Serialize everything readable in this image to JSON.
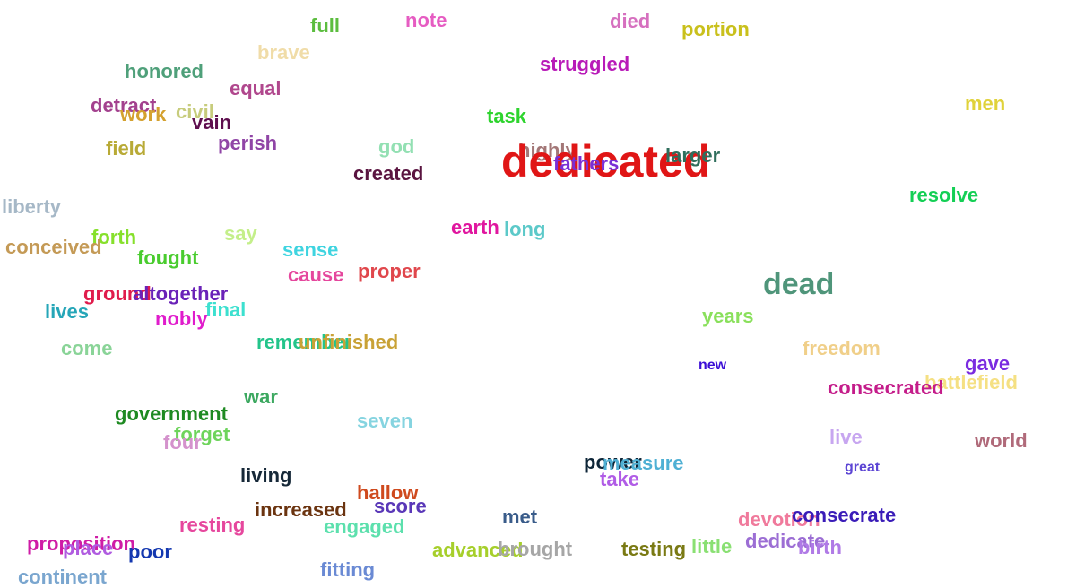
{
  "words": [
    {
      "id": "full",
      "text": "full",
      "color": "#5cbd3f"
    },
    {
      "id": "note",
      "text": "note",
      "color": "#e65cc2"
    },
    {
      "id": "died",
      "text": "died",
      "color": "#d670bf"
    },
    {
      "id": "portion",
      "text": "portion",
      "color": "#c9c01c"
    },
    {
      "id": "brave",
      "text": "brave",
      "color": "#f0dca8"
    },
    {
      "id": "struggled",
      "text": "struggled",
      "color": "#b81ab8"
    },
    {
      "id": "honored",
      "text": "honored",
      "color": "#4fa07a"
    },
    {
      "id": "equal",
      "text": "equal",
      "color": "#b0478d"
    },
    {
      "id": "men",
      "text": "men",
      "color": "#e0d23a"
    },
    {
      "id": "detract",
      "text": "detract",
      "color": "#a3418e"
    },
    {
      "id": "work",
      "text": "work",
      "color": "#d4a12f"
    },
    {
      "id": "civil",
      "text": "civil",
      "color": "#c7cc7c"
    },
    {
      "id": "vain",
      "text": "vain",
      "color": "#5e0e4e"
    },
    {
      "id": "task",
      "text": "task",
      "color": "#2ed42e"
    },
    {
      "id": "field",
      "text": "field",
      "color": "#b8aa36"
    },
    {
      "id": "perish",
      "text": "perish",
      "color": "#9045a6"
    },
    {
      "id": "god",
      "text": "god",
      "color": "#93e0b3"
    },
    {
      "id": "highly",
      "text": "highly",
      "color": "#a37777"
    },
    {
      "id": "dedicated",
      "text": "dedicated",
      "color": "#e01616"
    },
    {
      "id": "fathers",
      "text": "fathers",
      "color": "#7a2fd6"
    },
    {
      "id": "larger",
      "text": "larger",
      "color": "#2f6e5c"
    },
    {
      "id": "created",
      "text": "created",
      "color": "#5a1440"
    },
    {
      "id": "resolve",
      "text": "resolve",
      "color": "#14cf55"
    },
    {
      "id": "liberty",
      "text": "liberty",
      "color": "#a6b8c7"
    },
    {
      "id": "earth",
      "text": "earth",
      "color": "#e0169f"
    },
    {
      "id": "long",
      "text": "long",
      "color": "#5cc9c9"
    },
    {
      "id": "say",
      "text": "say",
      "color": "#c4ef8a"
    },
    {
      "id": "forth",
      "text": "forth",
      "color": "#86e02b"
    },
    {
      "id": "conceived",
      "text": "conceived",
      "color": "#c49a56"
    },
    {
      "id": "sense",
      "text": "sense",
      "color": "#3fd4e0"
    },
    {
      "id": "fought",
      "text": "fought",
      "color": "#49cc2e"
    },
    {
      "id": "cause",
      "text": "cause",
      "color": "#e5479d"
    },
    {
      "id": "proper",
      "text": "proper",
      "color": "#e0474c"
    },
    {
      "id": "dead",
      "text": "dead",
      "color": "#4f957a"
    },
    {
      "id": "ground",
      "text": "ground",
      "color": "#e01c4c"
    },
    {
      "id": "altogether",
      "text": "altogether",
      "color": "#6a22b8"
    },
    {
      "id": "lives",
      "text": "lives",
      "color": "#26a6b8"
    },
    {
      "id": "final",
      "text": "final",
      "color": "#3ce0cf"
    },
    {
      "id": "nobly",
      "text": "nobly",
      "color": "#e01ccc"
    },
    {
      "id": "years",
      "text": "years",
      "color": "#8ae05c"
    },
    {
      "id": "come",
      "text": "come",
      "color": "#8ad498"
    },
    {
      "id": "remember",
      "text": "remember",
      "color": "#23c48a"
    },
    {
      "id": "unfinished",
      "text": "unfinished",
      "color": "#c9a236"
    },
    {
      "id": "freedom",
      "text": "freedom",
      "color": "#f0cf89"
    },
    {
      "id": "new",
      "text": "new",
      "color": "#3b0ed6"
    },
    {
      "id": "gave",
      "text": "gave",
      "color": "#7a2be0"
    },
    {
      "id": "battlefield",
      "text": "battlefield",
      "color": "#f5e083"
    },
    {
      "id": "consecrated",
      "text": "consecrated",
      "color": "#c41c8a"
    },
    {
      "id": "war",
      "text": "war",
      "color": "#3ca860"
    },
    {
      "id": "government",
      "text": "government",
      "color": "#1e8a22"
    },
    {
      "id": "seven",
      "text": "seven",
      "color": "#86d4e0"
    },
    {
      "id": "forget",
      "text": "forget",
      "color": "#6ed45c"
    },
    {
      "id": "four",
      "text": "four",
      "color": "#d492cc"
    },
    {
      "id": "live",
      "text": "live",
      "color": "#c7a6f0"
    },
    {
      "id": "world",
      "text": "world",
      "color": "#b06a7a"
    },
    {
      "id": "great",
      "text": "great",
      "color": "#5c45d4"
    },
    {
      "id": "power",
      "text": "power",
      "color": "#0e2638"
    },
    {
      "id": "measure",
      "text": "measure",
      "color": "#4fb0d4"
    },
    {
      "id": "take",
      "text": "take",
      "color": "#b05ce6"
    },
    {
      "id": "living",
      "text": "living",
      "color": "#162838"
    },
    {
      "id": "hallow",
      "text": "hallow",
      "color": "#cf4a1e"
    },
    {
      "id": "score",
      "text": "score",
      "color": "#5a38b8"
    },
    {
      "id": "increased",
      "text": "increased",
      "color": "#6b3410"
    },
    {
      "id": "resting",
      "text": "resting",
      "color": "#e6479d"
    },
    {
      "id": "engaged",
      "text": "engaged",
      "color": "#5ce0ad"
    },
    {
      "id": "met",
      "text": "met",
      "color": "#3a5c8a"
    },
    {
      "id": "devotion",
      "text": "devotion",
      "color": "#f07a9c"
    },
    {
      "id": "consecrate",
      "text": "consecrate",
      "color": "#3a1cb8"
    },
    {
      "id": "proposition",
      "text": "proposition",
      "color": "#cf1ca6"
    },
    {
      "id": "place",
      "text": "place",
      "color": "#b05ce0"
    },
    {
      "id": "poor",
      "text": "poor",
      "color": "#1438b0"
    },
    {
      "id": "advanced",
      "text": "advanced",
      "color": "#a6cf2b"
    },
    {
      "id": "brought",
      "text": "brought",
      "color": "#a6a6a6"
    },
    {
      "id": "testing",
      "text": "testing",
      "color": "#7a7a14"
    },
    {
      "id": "little",
      "text": "little",
      "color": "#8ae073"
    },
    {
      "id": "dedicate",
      "text": "dedicate",
      "color": "#9c6ed4"
    },
    {
      "id": "birth",
      "text": "birth",
      "color": "#b07ae6"
    },
    {
      "id": "continent",
      "text": "continent",
      "color": "#7aa6cf"
    },
    {
      "id": "fitting",
      "text": "fitting",
      "color": "#6a8ad4"
    }
  ]
}
